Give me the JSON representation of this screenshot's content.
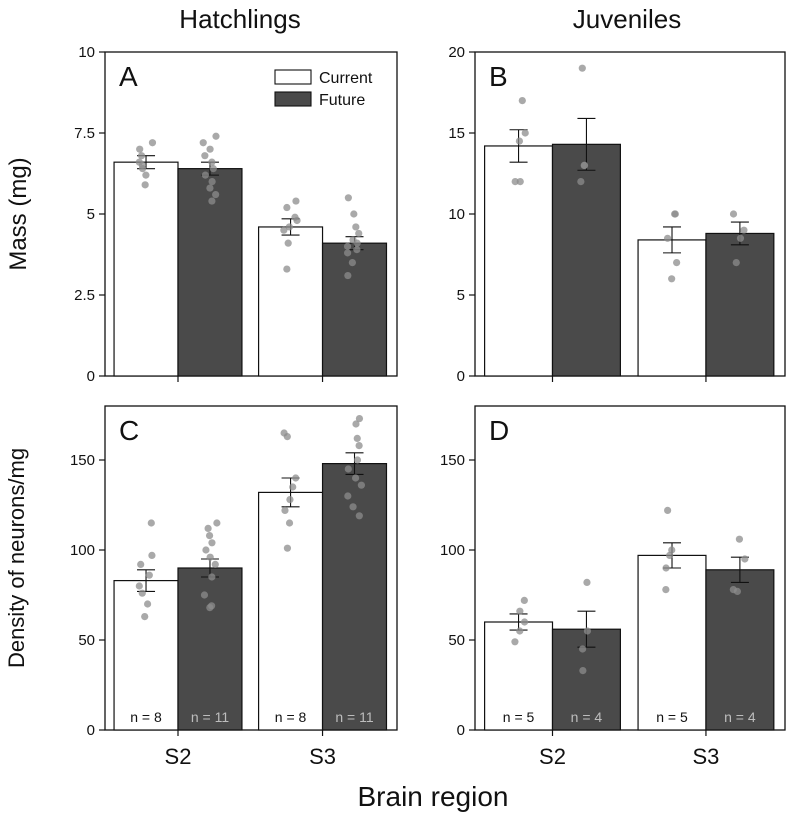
{
  "figure": {
    "column_titles": [
      "Hatchlings",
      "Juveniles"
    ],
    "y_label_top": "Mass (mg)",
    "y_label_bottom": "Density of neurons/mg",
    "x_label": "Brain region"
  },
  "colors": {
    "current": "#ffffff",
    "future": "#4a4a4a",
    "dots": "#8c8c8c",
    "axis": "#111111"
  },
  "chart_data": [
    {
      "panel": "A",
      "type": "bar",
      "categories": [
        "S2",
        "S3"
      ],
      "ylim": [
        0,
        10
      ],
      "yticks": [
        "0",
        "2.5",
        "5",
        "7.5",
        "10"
      ],
      "legend": {
        "placement": "top-right",
        "entries": [
          "Current",
          "Future"
        ]
      },
      "series": [
        {
          "name": "Current",
          "values": [
            6.6,
            4.6
          ],
          "sem": [
            0.2,
            0.25
          ],
          "points": [
            [
              5.9,
              6.2,
              6.5,
              6.6,
              6.8,
              7.0,
              7.2,
              6.4
            ],
            [
              3.3,
              4.1,
              4.5,
              4.8,
              4.9,
              5.2,
              5.4,
              4.6
            ]
          ]
        },
        {
          "name": "Future",
          "values": [
            6.4,
            4.1
          ],
          "sem": [
            0.2,
            0.2
          ],
          "points": [
            [
              5.4,
              5.6,
              6.0,
              6.2,
              6.4,
              6.6,
              6.8,
              7.0,
              7.2,
              7.4,
              5.8
            ],
            [
              3.1,
              3.5,
              3.8,
              3.9,
              4.0,
              4.1,
              4.2,
              4.4,
              4.6,
              5.0,
              5.5
            ]
          ]
        }
      ],
      "n_labels": []
    },
    {
      "panel": "B",
      "type": "bar",
      "categories": [
        "S2",
        "S3"
      ],
      "ylim": [
        0,
        20
      ],
      "yticks": [
        "0",
        "5",
        "10",
        "15",
        "20"
      ],
      "series": [
        {
          "name": "Current",
          "values": [
            14.2,
            8.4
          ],
          "sem": [
            1.0,
            0.8
          ],
          "points": [
            [
              12.0,
              12.0,
              14.5,
              15.0,
              17.0
            ],
            [
              6.0,
              7.0,
              8.5,
              10.0,
              10.0
            ]
          ]
        },
        {
          "name": "Future",
          "values": [
            14.3,
            8.8
          ],
          "sem": [
            1.6,
            0.7
          ],
          "points": [
            [
              12.0,
              13.0,
              13.0,
              19.0
            ],
            [
              7.0,
              8.5,
              9.0,
              10.0
            ]
          ]
        }
      ],
      "n_labels": []
    },
    {
      "panel": "C",
      "type": "bar",
      "categories": [
        "S2",
        "S3"
      ],
      "ylim": [
        0,
        180
      ],
      "yticks": [
        "0",
        "50",
        "100",
        "150"
      ],
      "series": [
        {
          "name": "Current",
          "values": [
            83,
            132
          ],
          "sem": [
            6,
            8
          ],
          "points": [
            [
              63,
              70,
              76,
              80,
              86,
              92,
              97,
              115
            ],
            [
              101,
              115,
              122,
              128,
              135,
              140,
              163,
              165
            ]
          ]
        },
        {
          "name": "Future",
          "values": [
            90,
            148
          ],
          "sem": [
            5,
            6
          ],
          "points": [
            [
              68,
              69,
              75,
              85,
              92,
              96,
              100,
              104,
              108,
              112,
              115
            ],
            [
              119,
              124,
              130,
              136,
              140,
              145,
              150,
              158,
              162,
              170,
              173
            ]
          ]
        }
      ],
      "n_labels": [
        [
          "n = 8",
          "n = 11"
        ],
        [
          "n = 8",
          "n = 11"
        ]
      ]
    },
    {
      "panel": "D",
      "type": "bar",
      "categories": [
        "S2",
        "S3"
      ],
      "ylim": [
        0,
        180
      ],
      "yticks": [
        "0",
        "50",
        "100",
        "150"
      ],
      "series": [
        {
          "name": "Current",
          "values": [
            60,
            97
          ],
          "sem": [
            4.5,
            7
          ],
          "points": [
            [
              49,
              55,
              60,
              66,
              72
            ],
            [
              78,
              90,
              97,
              100,
              122
            ]
          ]
        },
        {
          "name": "Future",
          "values": [
            56,
            89
          ],
          "sem": [
            10,
            7
          ],
          "points": [
            [
              33,
              45,
              55,
              82
            ],
            [
              77,
              78,
              95,
              106
            ]
          ]
        }
      ],
      "n_labels": [
        [
          "n = 5",
          "n = 4"
        ],
        [
          "n = 5",
          "n = 4"
        ]
      ]
    }
  ]
}
